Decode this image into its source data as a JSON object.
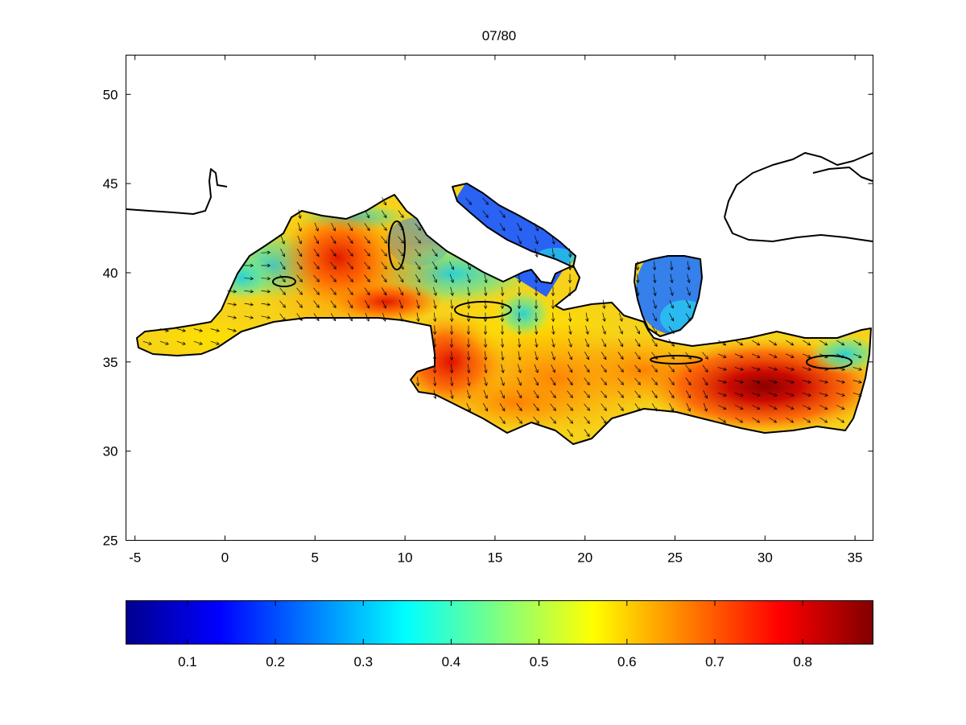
{
  "figure": {
    "title": "07/80"
  },
  "map": {
    "type": "heatmap",
    "region": "Mediterranean Sea",
    "xlim": [
      -5.5,
      36
    ],
    "ylim": [
      25,
      52.2
    ],
    "x_ticks": [
      {
        "value": -5,
        "label": "-5"
      },
      {
        "value": 0,
        "label": "0"
      },
      {
        "value": 5,
        "label": "5"
      },
      {
        "value": 10,
        "label": "10"
      },
      {
        "value": 15,
        "label": "15"
      },
      {
        "value": 20,
        "label": "20"
      },
      {
        "value": 25,
        "label": "25"
      },
      {
        "value": 30,
        "label": "30"
      },
      {
        "value": 35,
        "label": "35"
      }
    ],
    "y_ticks": [
      {
        "value": 25,
        "label": "25"
      },
      {
        "value": 30,
        "label": "30"
      },
      {
        "value": 35,
        "label": "35"
      },
      {
        "value": 40,
        "label": "40"
      },
      {
        "value": 45,
        "label": "45"
      },
      {
        "value": 50,
        "label": "50"
      }
    ],
    "vector_field": "wind/current arrows, predominantly pointing south to south-east",
    "field_hotspots": [
      {
        "lon": 6,
        "lat": 41,
        "value": 0.78
      },
      {
        "lon": 12.5,
        "lat": 35,
        "value": 0.8
      },
      {
        "lon": 30,
        "lat": 33.5,
        "value": 0.86
      },
      {
        "lon": 18,
        "lat": 36,
        "value": 0.62
      },
      {
        "lon": 14,
        "lat": 44,
        "value": 0.18
      },
      {
        "lon": 25,
        "lat": 39.5,
        "value": 0.2
      }
    ]
  },
  "colorbar": {
    "colormap": "jet",
    "range": [
      0.03,
      0.88
    ],
    "ticks": [
      {
        "value": 0.1,
        "label": "0.1"
      },
      {
        "value": 0.2,
        "label": "0.2"
      },
      {
        "value": 0.3,
        "label": "0.3"
      },
      {
        "value": 0.4,
        "label": "0.4"
      },
      {
        "value": 0.5,
        "label": "0.5"
      },
      {
        "value": 0.6,
        "label": "0.6"
      },
      {
        "value": 0.7,
        "label": "0.7"
      },
      {
        "value": 0.8,
        "label": "0.8"
      }
    ]
  }
}
